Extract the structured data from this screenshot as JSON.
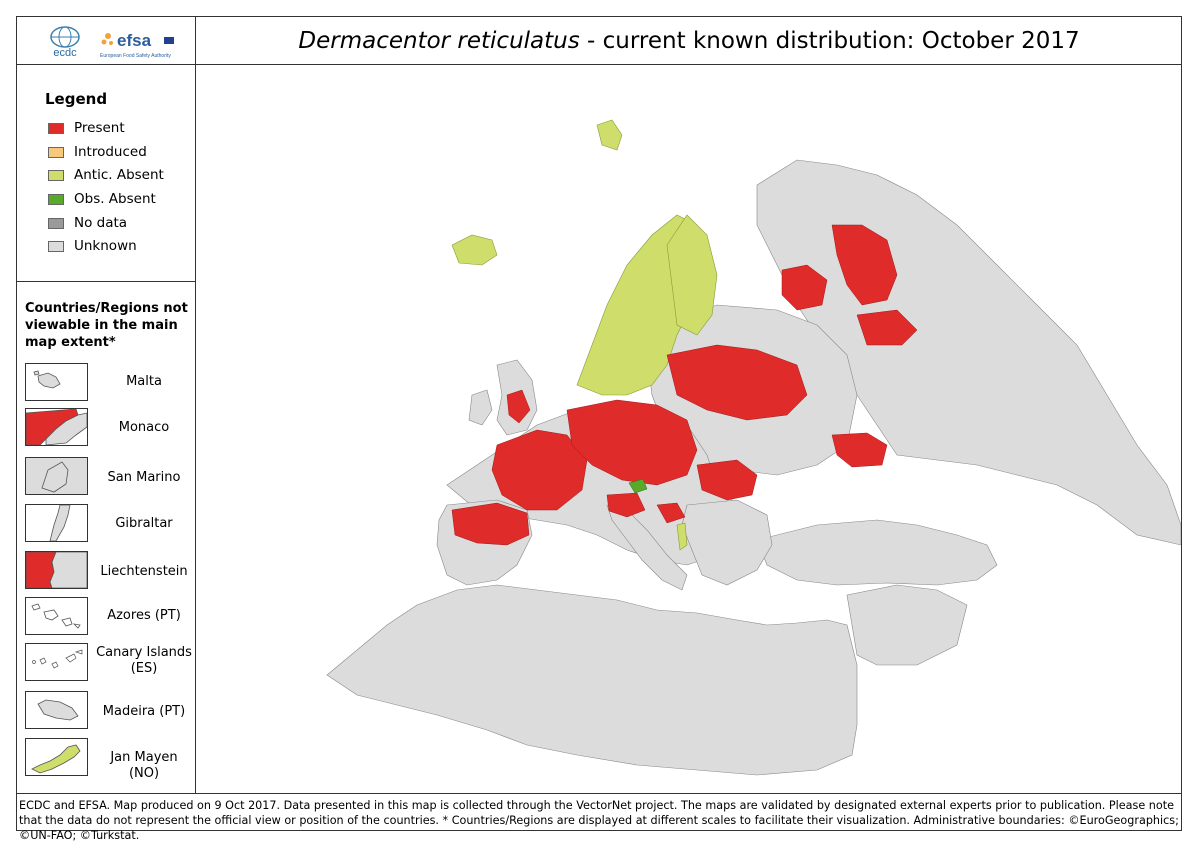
{
  "header": {
    "title_species": "Dermacentor reticulatus",
    "title_rest": " - current known distribution: October 2017",
    "logo_ecdc_text": "ecdc",
    "logo_efsa_text": "efsa",
    "logo_efsa_sub": "European Food Safety Authority"
  },
  "legend": {
    "title": "Legend",
    "items": [
      {
        "label": "Present",
        "color": "#e02b2b"
      },
      {
        "label": "Introduced",
        "color": "#f7c97a"
      },
      {
        "label": "Antic. Absent",
        "color": "#cfdd6a"
      },
      {
        "label": "Obs. Absent",
        "color": "#5aaa2a"
      },
      {
        "label": "No data",
        "color": "#9a9a9a"
      },
      {
        "label": "Unknown",
        "color": "#dcdcdc"
      }
    ]
  },
  "regions": {
    "title": "Countries/Regions not viewable in the main map extent*",
    "items": [
      {
        "label": "Malta",
        "status": "Unknown"
      },
      {
        "label": "Monaco",
        "status": "Present"
      },
      {
        "label": "San Marino",
        "status": "Unknown"
      },
      {
        "label": "Gibraltar",
        "status": "Unknown"
      },
      {
        "label": "Liechtenstein",
        "status": "Present"
      },
      {
        "label": "Azores (PT)",
        "status": "Unknown"
      },
      {
        "label": "Canary Islands (ES)",
        "status": "Unknown"
      },
      {
        "label": "Madeira (PT)",
        "status": "Unknown"
      },
      {
        "label": "Jan Mayen (NO)",
        "status": "Antic. Absent"
      }
    ]
  },
  "map": {
    "ocean_color": "#ffffff",
    "border_color": "#888888"
  },
  "footer": {
    "text": "ECDC and EFSA. Map produced on 9 Oct 2017. Data presented in this map is collected through the VectorNet project. The maps are validated by designated external experts prior to publication. Please note that the data do not represent the official view or position of the countries. * Countries/Regions are displayed at different scales to facilitate their visualization. Administrative boundaries: ©EuroGeographics; ©UN-FAO; ©Turkstat."
  }
}
